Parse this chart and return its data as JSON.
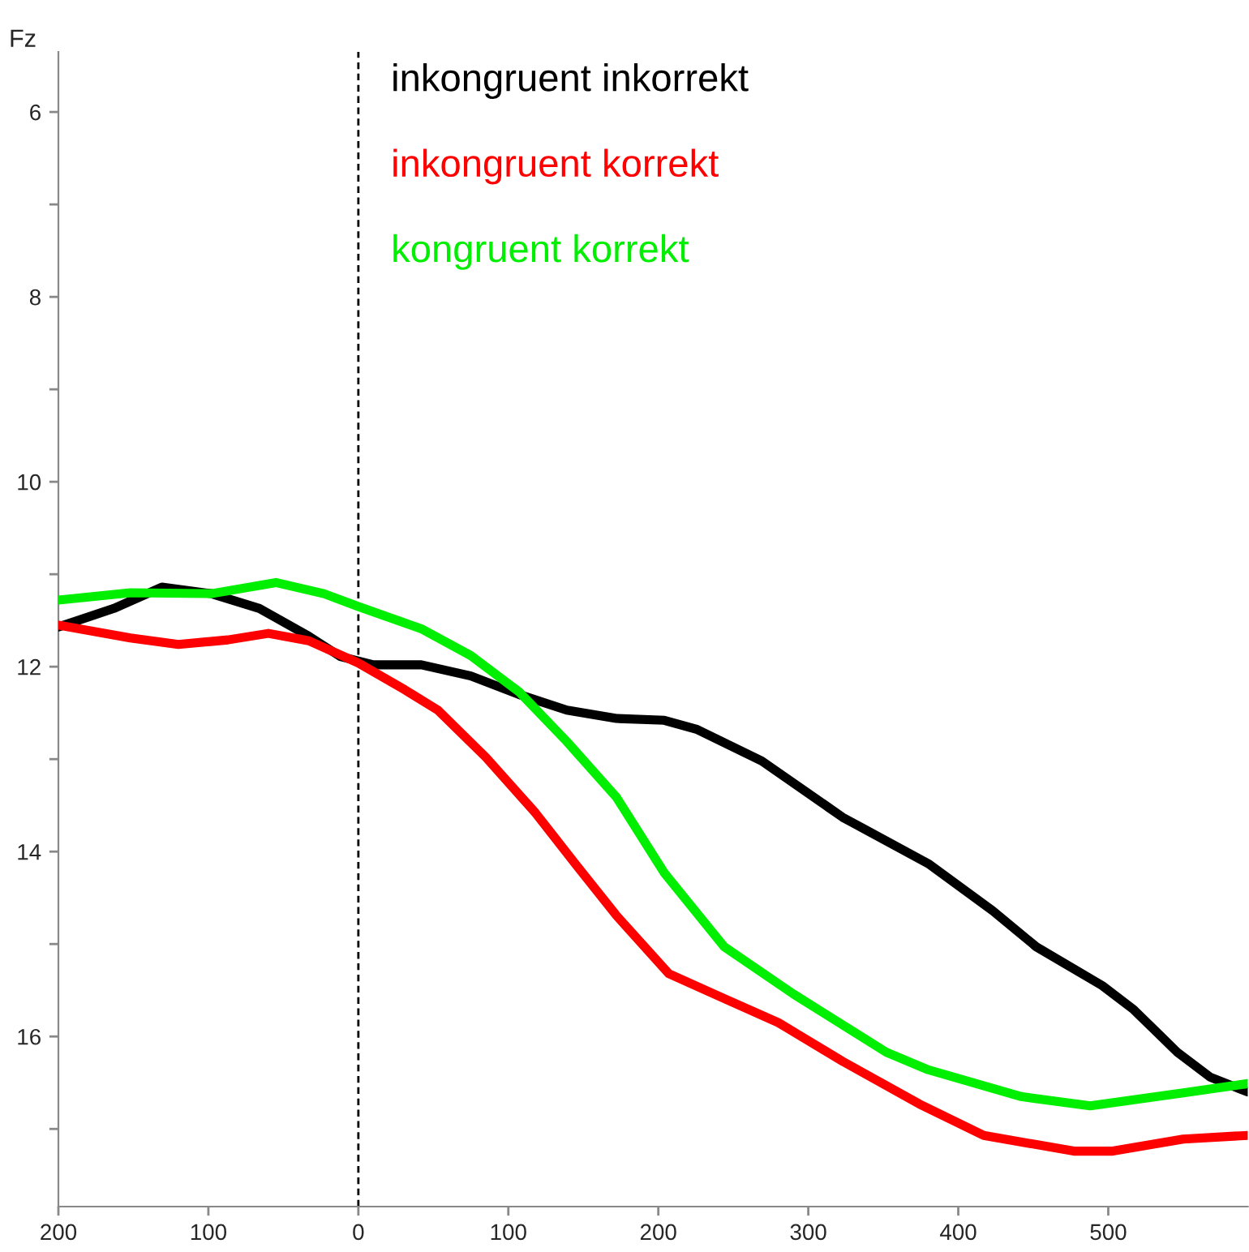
{
  "chart_data": {
    "type": "line",
    "ylabel": "Fz",
    "xlim": [
      -200,
      593
    ],
    "ylim": [
      17.84,
      5.35
    ],
    "xticks": [
      {
        "value": -200,
        "label": "200"
      },
      {
        "value": -100,
        "label": "100"
      },
      0,
      100,
      200,
      300,
      400,
      500
    ],
    "yticks": [
      6,
      {
        "value": 7,
        "label": null
      },
      8,
      {
        "value": 9,
        "label": null
      },
      10,
      {
        "value": 11,
        "label": null
      },
      12,
      {
        "value": 13,
        "label": null
      },
      14,
      {
        "value": 15,
        "label": null
      },
      16,
      {
        "value": 17,
        "label": null
      }
    ],
    "grid": false,
    "legend": "top",
    "marker": "none",
    "line_style": "solid",
    "ref_lines": [
      {
        "axis": "x",
        "value": 0,
        "color": "#000000",
        "line_style": "dashed"
      }
    ],
    "series": [
      {
        "name": "inkongruent inkorrekt",
        "color": "#000000",
        "x": [
          -200,
          -163,
          -131,
          -98,
          -66,
          -33,
          -12,
          10,
          42,
          75,
          107,
          139,
          172,
          204,
          226,
          269,
          323,
          380,
          423,
          452,
          496,
          517,
          546,
          568,
          593
        ],
        "values": [
          11.57,
          11.37,
          11.14,
          11.21,
          11.37,
          11.67,
          11.89,
          11.98,
          11.98,
          12.1,
          12.3,
          12.47,
          12.56,
          12.58,
          12.68,
          13.02,
          13.63,
          14.13,
          14.64,
          15.03,
          15.45,
          15.71,
          16.17,
          16.44,
          16.6
        ]
      },
      {
        "name": "inkongruent korrekt",
        "color": "#ff0000",
        "x": [
          -200,
          -152,
          -120,
          -87,
          -60,
          -33,
          0,
          31,
          53,
          85,
          118,
          145,
          172,
          207,
          244,
          280,
          323,
          374,
          417,
          477,
          503,
          550,
          593
        ],
        "values": [
          11.55,
          11.69,
          11.76,
          11.71,
          11.64,
          11.72,
          11.96,
          12.25,
          12.47,
          12.98,
          13.58,
          14.14,
          14.69,
          15.32,
          15.59,
          15.85,
          16.27,
          16.73,
          17.07,
          17.24,
          17.24,
          17.11,
          17.07
        ]
      },
      {
        "name": "kongruent korrekt",
        "color": "#00ee00",
        "x": [
          -200,
          -152,
          -98,
          -55,
          -23,
          0,
          42,
          75,
          107,
          139,
          172,
          204,
          244,
          290,
          352,
          380,
          442,
          488,
          550,
          593
        ],
        "values": [
          11.28,
          11.2,
          11.21,
          11.09,
          11.21,
          11.35,
          11.59,
          11.88,
          12.27,
          12.81,
          13.41,
          14.23,
          15.03,
          15.54,
          16.17,
          16.36,
          16.65,
          16.75,
          16.61,
          16.51
        ]
      }
    ]
  }
}
